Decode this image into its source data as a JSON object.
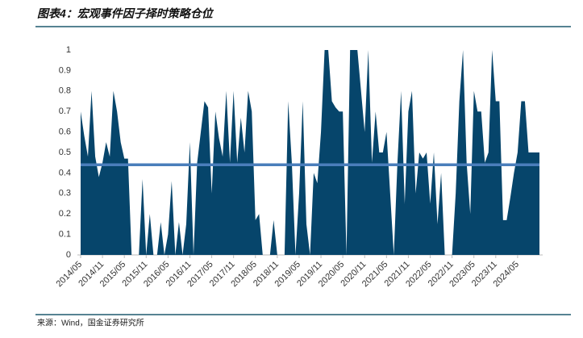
{
  "chart_data": {
    "type": "area",
    "title": "图表4：宏观事件因子择时策略仓位",
    "source": "来源：Wind，国金证券研究所",
    "categories": [
      "2014/05",
      null,
      null,
      null,
      null,
      null,
      "2014/11",
      null,
      null,
      null,
      null,
      null,
      "2015/05",
      null,
      null,
      null,
      null,
      null,
      "2015/11",
      null,
      null,
      null,
      null,
      null,
      "2016/05",
      null,
      null,
      null,
      null,
      null,
      "2016/11",
      null,
      null,
      null,
      null,
      null,
      "2017/05",
      null,
      null,
      null,
      null,
      null,
      "2017/11",
      null,
      null,
      null,
      null,
      null,
      "2018/05",
      null,
      null,
      null,
      null,
      null,
      "2018/11",
      null,
      null,
      null,
      null,
      null,
      "2019/05",
      null,
      null,
      null,
      null,
      null,
      "2019/11",
      null,
      null,
      null,
      null,
      null,
      "2020/05",
      null,
      null,
      null,
      null,
      null,
      "2020/11",
      null,
      null,
      null,
      null,
      null,
      "2021/05",
      null,
      null,
      null,
      null,
      null,
      "2021/11",
      null,
      null,
      null,
      null,
      null,
      "2022/05",
      null,
      null,
      null,
      null,
      null,
      "2022/11",
      null,
      null,
      null,
      null,
      null,
      "2023/05",
      null,
      null,
      null,
      null,
      null,
      "2023/11",
      null,
      null,
      null,
      null,
      null,
      "2024/05",
      null,
      null,
      null,
      null,
      null,
      null
    ],
    "series": [
      {
        "color": "#06456b",
        "values": [
          0.7,
          0.58,
          0.48,
          0.8,
          0.48,
          0.38,
          0.45,
          0.55,
          0.48,
          0.8,
          0.7,
          0.55,
          0.47,
          0.47,
          0,
          0,
          0,
          0.37,
          0,
          0.2,
          0,
          0,
          0.16,
          0,
          0.1,
          0.36,
          0,
          0.16,
          0,
          0.15,
          0.55,
          0,
          0.45,
          0.6,
          0.75,
          0.72,
          0.3,
          0.7,
          0.57,
          0.48,
          0.8,
          0.45,
          0.8,
          0.45,
          0.67,
          0.5,
          0.8,
          0.7,
          0.17,
          0.2,
          0,
          0,
          0,
          0.17,
          0,
          0,
          0,
          0.75,
          0.45,
          0,
          0.3,
          0.75,
          0.15,
          0,
          0.4,
          0.35,
          0.6,
          1,
          1,
          0.75,
          0.72,
          0.7,
          0.7,
          0,
          1,
          1,
          1,
          0.8,
          0.6,
          1,
          0.45,
          0.7,
          0.5,
          0.5,
          0.6,
          0.3,
          0,
          0.45,
          0.8,
          0.25,
          0.7,
          0.8,
          0.3,
          0.5,
          0.47,
          0.5,
          0.25,
          0.5,
          0.15,
          0.4,
          0,
          0,
          0,
          0.3,
          0.75,
          1,
          0.45,
          0.2,
          0.8,
          0.7,
          0.7,
          0.45,
          0.5,
          1,
          0.75,
          0.75,
          0.17,
          0.17,
          0.28,
          0.4,
          0.5,
          0.75,
          0.75,
          0.5,
          0.5,
          0.5,
          0.5
        ]
      },
      {
        "color": "#4a7ebb",
        "values": [
          0.44,
          0.44,
          0.44,
          0.44,
          0.44,
          0.44,
          0.44,
          0.44,
          0.44,
          0.44,
          0.44,
          0.44,
          0.44,
          0.44,
          0.44,
          0.44,
          0.44,
          0.44,
          0.44,
          0.44,
          0.44,
          0.44,
          0.44,
          0.44,
          0.44,
          0.44,
          0.44,
          0.44,
          0.44,
          0.44,
          0.44,
          0.44,
          0.44,
          0.44,
          0.44,
          0.44,
          0.44,
          0.44,
          0.44,
          0.44,
          0.44,
          0.44,
          0.44,
          0.44,
          0.44,
          0.44,
          0.44,
          0.44,
          0.44,
          0.44,
          0.44,
          0.44,
          0.44,
          0.44,
          0.44,
          0.44,
          0.44,
          0.44,
          0.44,
          0.44,
          0.44,
          0.44,
          0.44,
          0.44,
          0.44,
          0.44,
          0.44,
          0.44,
          0.44,
          0.44,
          0.44,
          0.44,
          0.44,
          0.44,
          0.44,
          0.44,
          0.44,
          0.44,
          0.44,
          0.44,
          0.44,
          0.44,
          0.44,
          0.44,
          0.44,
          0.44,
          0.44,
          0.44,
          0.44,
          0.44,
          0.44,
          0.44,
          0.44,
          0.44,
          0.44,
          0.44,
          0.44,
          0.44,
          0.44,
          0.44,
          0.44,
          0.44,
          0.44,
          0.44,
          0.44,
          0.44,
          0.44,
          0.44,
          0.44,
          0.44,
          0.44,
          0.44,
          0.44,
          0.44,
          0.44,
          0.44,
          0.44,
          0.44,
          0.44,
          0.44,
          0.44,
          0.44,
          0.44,
          0.44,
          0.44,
          0.44,
          0.44
        ]
      }
    ],
    "ylim": [
      0,
      1
    ],
    "yticks": [
      0,
      0.1,
      0.2,
      0.3,
      0.4,
      0.5,
      0.6,
      0.7,
      0.8,
      0.9,
      1
    ]
  }
}
